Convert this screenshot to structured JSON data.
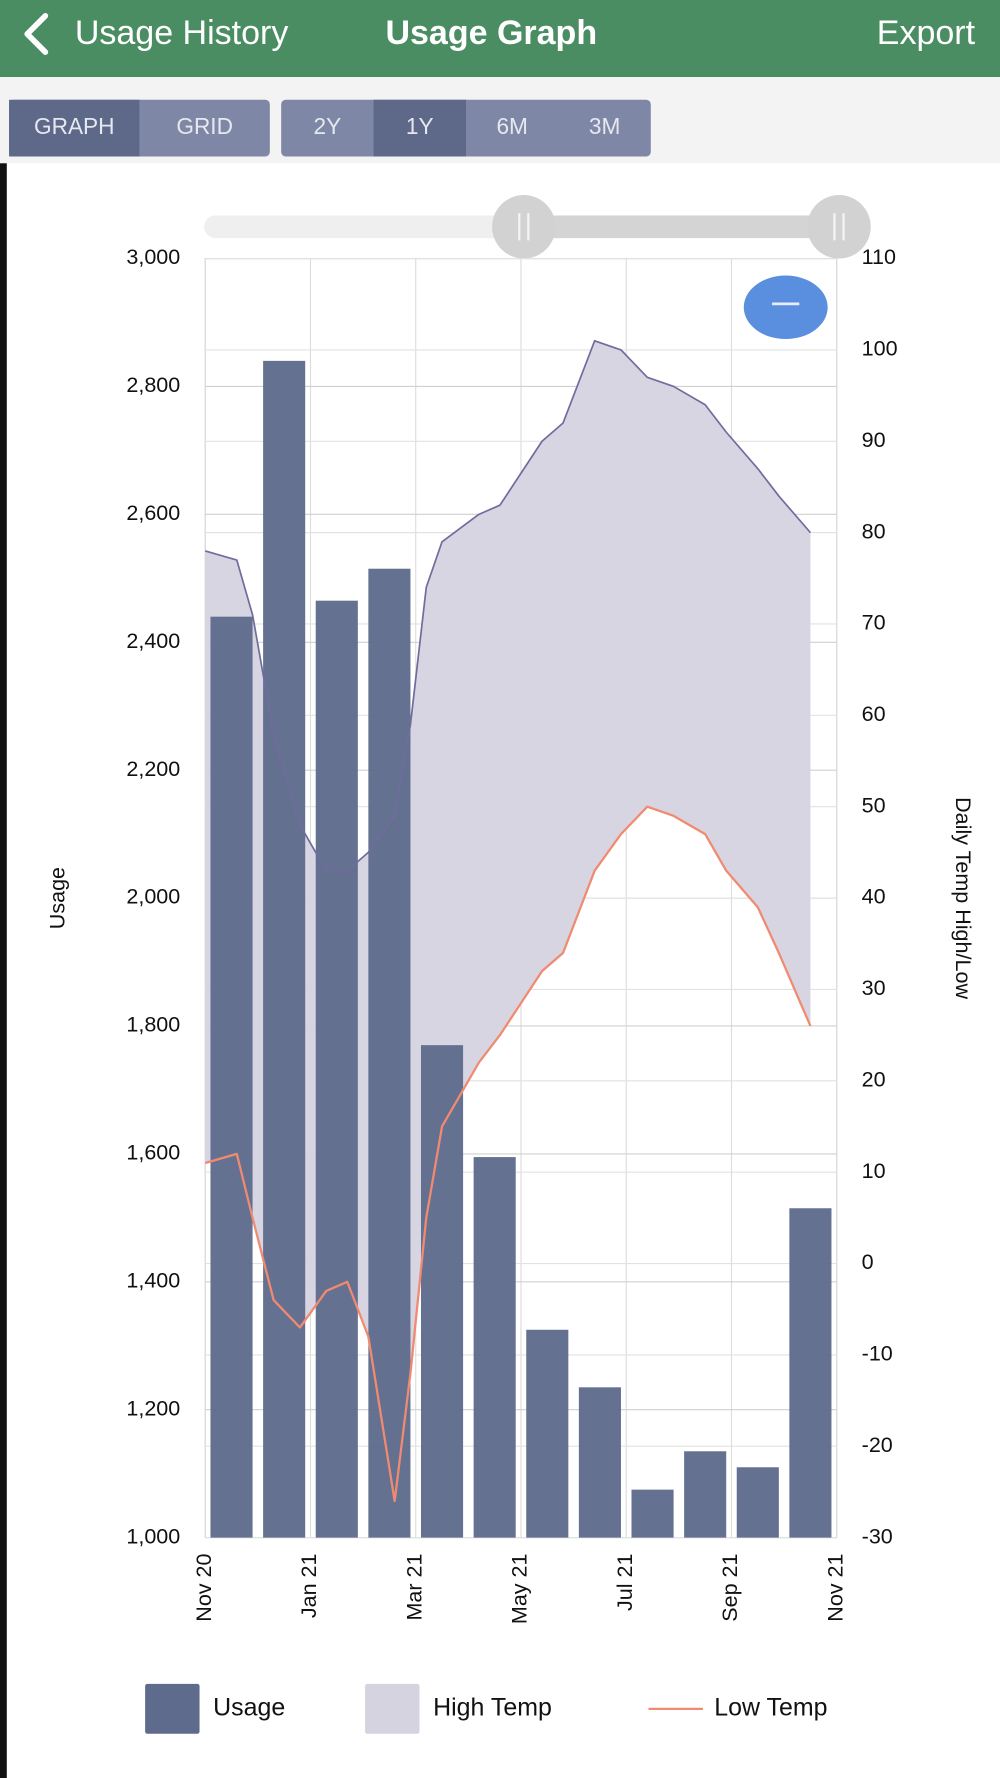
{
  "header": {
    "back": "Usage History",
    "title": "Usage Graph",
    "action": "Export"
  },
  "toolbar": {
    "view_tabs": [
      "GRAPH",
      "GRID"
    ],
    "selected_view": 0,
    "range_tabs": [
      "2Y",
      "1Y",
      "6M",
      "3M"
    ],
    "selected_range": 1
  },
  "chart_data": {
    "type": "bar",
    "y_label": "Usage",
    "y2_label": "Daily Temp High/Low",
    "xlim": [
      0,
      12
    ],
    "xticks": [
      {
        "value": 0,
        "label": "Nov 20"
      },
      {
        "value": 2,
        "label": "Jan 21"
      },
      {
        "value": 4,
        "label": "Mar 21"
      },
      {
        "value": 6,
        "label": "May 21"
      },
      {
        "value": 8,
        "label": "Jul 21"
      },
      {
        "value": 10,
        "label": "Sep 21"
      },
      {
        "value": 12,
        "label": "Nov 21"
      }
    ],
    "ylim": [
      1000,
      3000
    ],
    "yticks": [
      {
        "value": 1000,
        "label": "1,000"
      },
      {
        "value": 1200,
        "label": "1,200"
      },
      {
        "value": 1400,
        "label": "1,400"
      },
      {
        "value": 1600,
        "label": "1,600"
      },
      {
        "value": 1800,
        "label": "1,800"
      },
      {
        "value": 2000,
        "label": "2,000"
      },
      {
        "value": 2200,
        "label": "2,200"
      },
      {
        "value": 2400,
        "label": "2,400"
      },
      {
        "value": 2600,
        "label": "2,600"
      },
      {
        "value": 2800,
        "label": "2,800"
      },
      {
        "value": 3000,
        "label": "3,000"
      }
    ],
    "y2lim": [
      -30,
      110
    ],
    "y2ticks": [
      -30,
      -20,
      -10,
      0,
      10,
      20,
      30,
      40,
      50,
      60,
      70,
      80,
      90,
      100,
      110
    ],
    "grid": true,
    "legend": "bottom",
    "series": [
      {
        "name": "Usage",
        "type": "bar",
        "color": "#5f6b8c",
        "x": [
          0.5,
          1.5,
          2.5,
          3.5,
          4.5,
          5.5,
          6.5,
          7.5,
          8.5,
          9.5,
          10.5,
          11.5
        ],
        "values": [
          2440,
          2840,
          2465,
          2515,
          1770,
          1595,
          1325,
          1235,
          1075,
          1135,
          1110,
          1515
        ]
      },
      {
        "name": "High Temp",
        "type": "area",
        "axis": "y2",
        "color": "#d6d3e1",
        "x": [
          0,
          0.6,
          0.9,
          1.3,
          1.8,
          2.3,
          2.7,
          3.1,
          3.6,
          3.9,
          4.2,
          4.5,
          5.2,
          5.6,
          6.4,
          6.8,
          7.4,
          7.9,
          8.4,
          8.9,
          9.5,
          9.9,
          10.5,
          10.9,
          11.5
        ],
        "values": [
          78,
          77,
          71,
          58,
          48,
          43,
          43,
          45,
          49,
          59,
          74,
          79,
          82,
          83,
          90,
          92,
          101,
          100,
          97,
          96,
          94,
          91,
          87,
          84,
          80
        ]
      },
      {
        "name": "Low Temp",
        "type": "line",
        "axis": "y2",
        "color": "#f08a70",
        "x": [
          0,
          0.6,
          0.9,
          1.3,
          1.8,
          2.3,
          2.7,
          3.1,
          3.6,
          3.9,
          4.2,
          4.5,
          5.2,
          5.6,
          6.4,
          6.8,
          7.4,
          7.9,
          8.4,
          8.9,
          9.5,
          9.9,
          10.5,
          10.9,
          11.5
        ],
        "values": [
          11,
          12,
          5,
          -4,
          -7,
          -3,
          -2,
          -8,
          -26,
          -12,
          5,
          15,
          22,
          25,
          32,
          34,
          43,
          47,
          50,
          49,
          47,
          43,
          39,
          34,
          26
        ]
      }
    ]
  }
}
